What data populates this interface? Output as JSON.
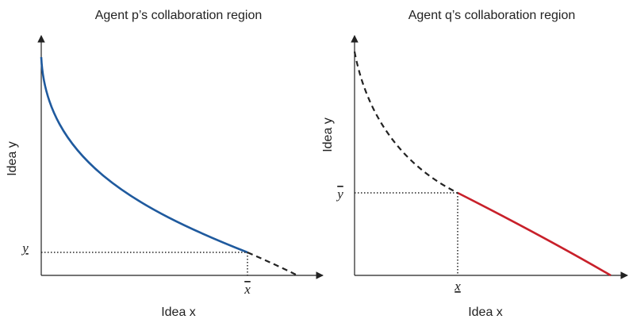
{
  "panels": [
    {
      "title": "Agent p’s collaboration region",
      "x_label": "Idea x",
      "y_label": "Idea y",
      "x_tick": "x",
      "y_tick": "y"
    },
    {
      "title": "Agent q’s collaboration region",
      "x_label": "Idea x",
      "y_label": "Idea y",
      "x_tick": "x",
      "y_tick": "y"
    }
  ]
}
